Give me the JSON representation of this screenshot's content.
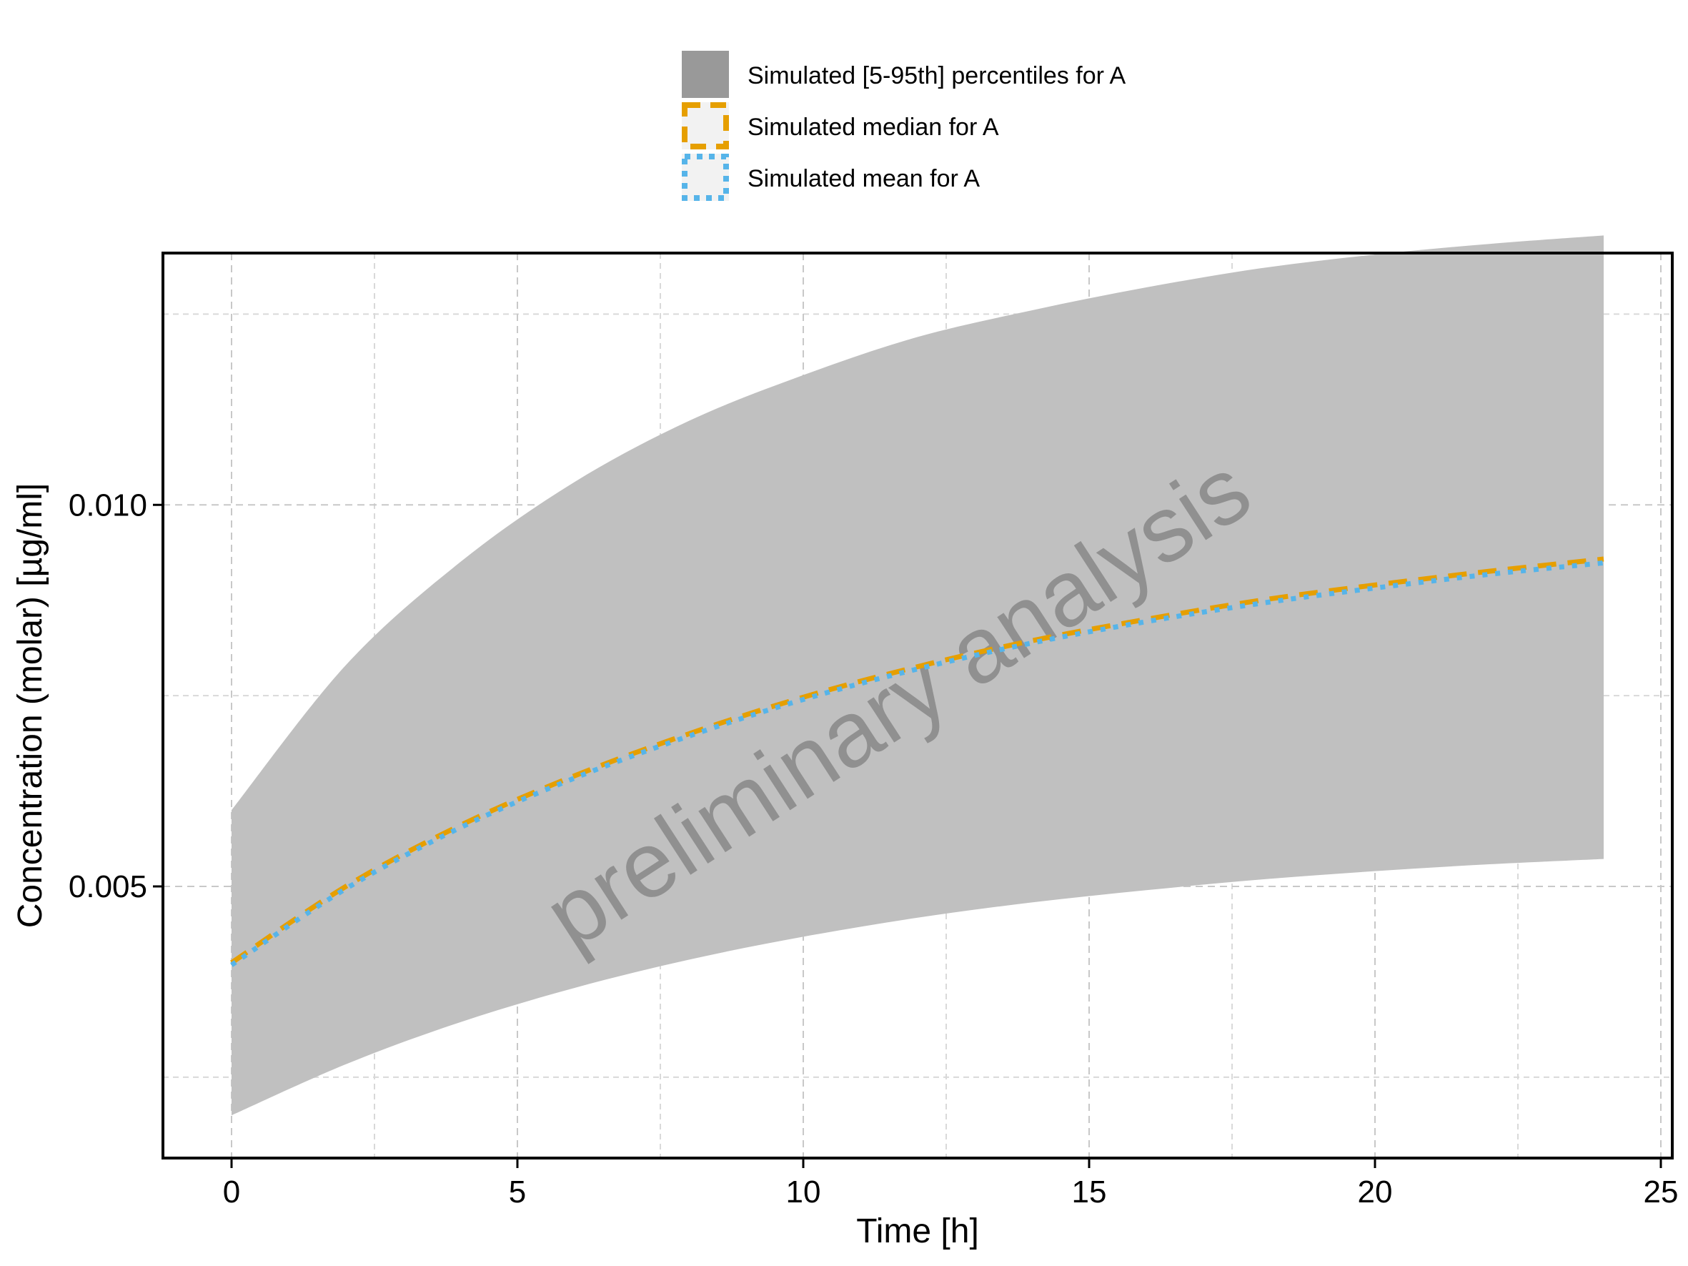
{
  "chart_data": {
    "type": "line",
    "title": "",
    "xlabel": "Time [h]",
    "ylabel": "Concentration (molar) [µg/ml]",
    "xlim": [
      -1.2,
      25.2
    ],
    "ylim": [
      0.00144,
      0.0133
    ],
    "x_ticks": [
      0,
      5,
      10,
      15,
      20,
      25
    ],
    "x_tick_labels": [
      "0",
      "5",
      "10",
      "15",
      "20",
      "25"
    ],
    "y_ticks": [
      0.005,
      0.01
    ],
    "y_tick_labels": [
      "0.005",
      "0.010"
    ],
    "y_minor_ticks": [
      0.0025,
      0.0075,
      0.0125
    ],
    "grid": true,
    "legend_position": "top",
    "watermark": "preliminary analysis",
    "x": [
      0,
      2,
      4,
      6,
      8,
      10,
      12,
      14,
      16,
      18,
      20,
      22,
      24
    ],
    "series": [
      {
        "name": "Simulated [5-95th] percentiles for A",
        "kind": "ribbon",
        "color": "#999999",
        "fill": "#c0c0c0",
        "lower": [
          0.002,
          0.00267,
          0.00322,
          0.00367,
          0.00404,
          0.00434,
          0.00459,
          0.00479,
          0.00495,
          0.00509,
          0.0052,
          0.00529,
          0.00536
        ],
        "upper": [
          0.006,
          0.0079,
          0.00925,
          0.0103,
          0.0111,
          0.0117,
          0.0122,
          0.01255,
          0.01285,
          0.0131,
          0.01328,
          0.01342,
          0.01353
        ]
      },
      {
        "name": "Simulated median for A",
        "kind": "line",
        "color": "#E69F00",
        "dash": "dashed",
        "values": [
          0.004,
          0.005,
          0.0058,
          0.00645,
          0.007,
          0.00748,
          0.00788,
          0.00822,
          0.0085,
          0.00875,
          0.00895,
          0.00913,
          0.00929
        ]
      },
      {
        "name": "Simulated mean for A",
        "kind": "line",
        "color": "#56B4E9",
        "dash": "dotted",
        "values": [
          0.00397,
          0.00497,
          0.00577,
          0.00642,
          0.00697,
          0.00745,
          0.00785,
          0.00819,
          0.00847,
          0.00871,
          0.00891,
          0.00909,
          0.00924
        ]
      }
    ]
  }
}
